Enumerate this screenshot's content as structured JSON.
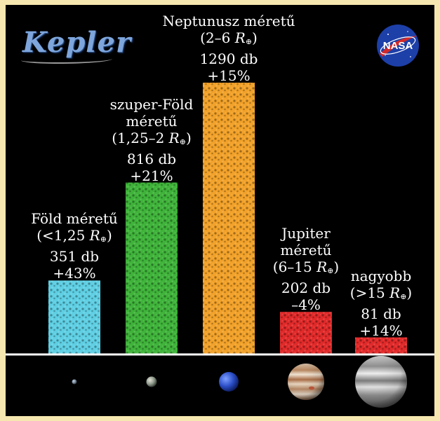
{
  "logos": {
    "kepler_text": "Kepler",
    "nasa_text": "NASA"
  },
  "colors": {
    "background": "#000000",
    "frame": "#f6e7b0",
    "earth_bar": "#5fcfe3",
    "superearth_bar": "#3fb33a",
    "neptune_bar": "#f2a22a",
    "jupiter_bar": "#e12a2a",
    "larger_bar": "#e12a2a",
    "axis": "#ffffff"
  },
  "chart_data": {
    "type": "bar",
    "categories": [
      "Föld méretű",
      "szuper-Föld méretű",
      "Neptunusz méretű",
      "Jupiter méretű",
      "nagyobb"
    ],
    "values": [
      351,
      816,
      1290,
      202,
      81
    ],
    "ylim": [
      0,
      1290
    ],
    "grid": false,
    "legend": "none",
    "bars": [
      {
        "name_lines": [
          "Föld méretű"
        ],
        "range_prefix": "(<1,25 ",
        "range_symbol": "R",
        "range_sub": "⊕",
        "range_suffix": ")",
        "count": "351 db",
        "change": "+43%",
        "value": 351,
        "color": "#5fcfe3",
        "icon": "earth-icon"
      },
      {
        "name_lines": [
          "szuper-Föld",
          "méretű"
        ],
        "range_prefix": "(1,25–2 ",
        "range_symbol": "R",
        "range_sub": "⊕",
        "range_suffix": ")",
        "count": "816 db",
        "change": "+21%",
        "value": 816,
        "color": "#3fb33a",
        "icon": "superearth-icon"
      },
      {
        "name_lines": [
          "Neptunusz méretű"
        ],
        "range_prefix": "(2–6 ",
        "range_symbol": "R",
        "range_sub": "⊕",
        "range_suffix": ")",
        "count": "1290 db",
        "change": "+15%",
        "value": 1290,
        "color": "#f2a22a",
        "icon": "neptune-icon"
      },
      {
        "name_lines": [
          "Jupiter",
          "méretű"
        ],
        "range_prefix": "(6–15 ",
        "range_symbol": "R",
        "range_sub": "⊕",
        "range_suffix": ")",
        "count": "202 db",
        "change": "–4%",
        "value": 202,
        "color": "#e12a2a",
        "icon": "jupiter-icon"
      },
      {
        "name_lines": [
          "nagyobb"
        ],
        "range_prefix": "(>15 ",
        "range_symbol": "R",
        "range_sub": "⊕",
        "range_suffix": ")",
        "count": "81 db",
        "change": "+14%",
        "value": 81,
        "color": "#e12a2a",
        "icon": "gas-giant-icon"
      }
    ]
  }
}
